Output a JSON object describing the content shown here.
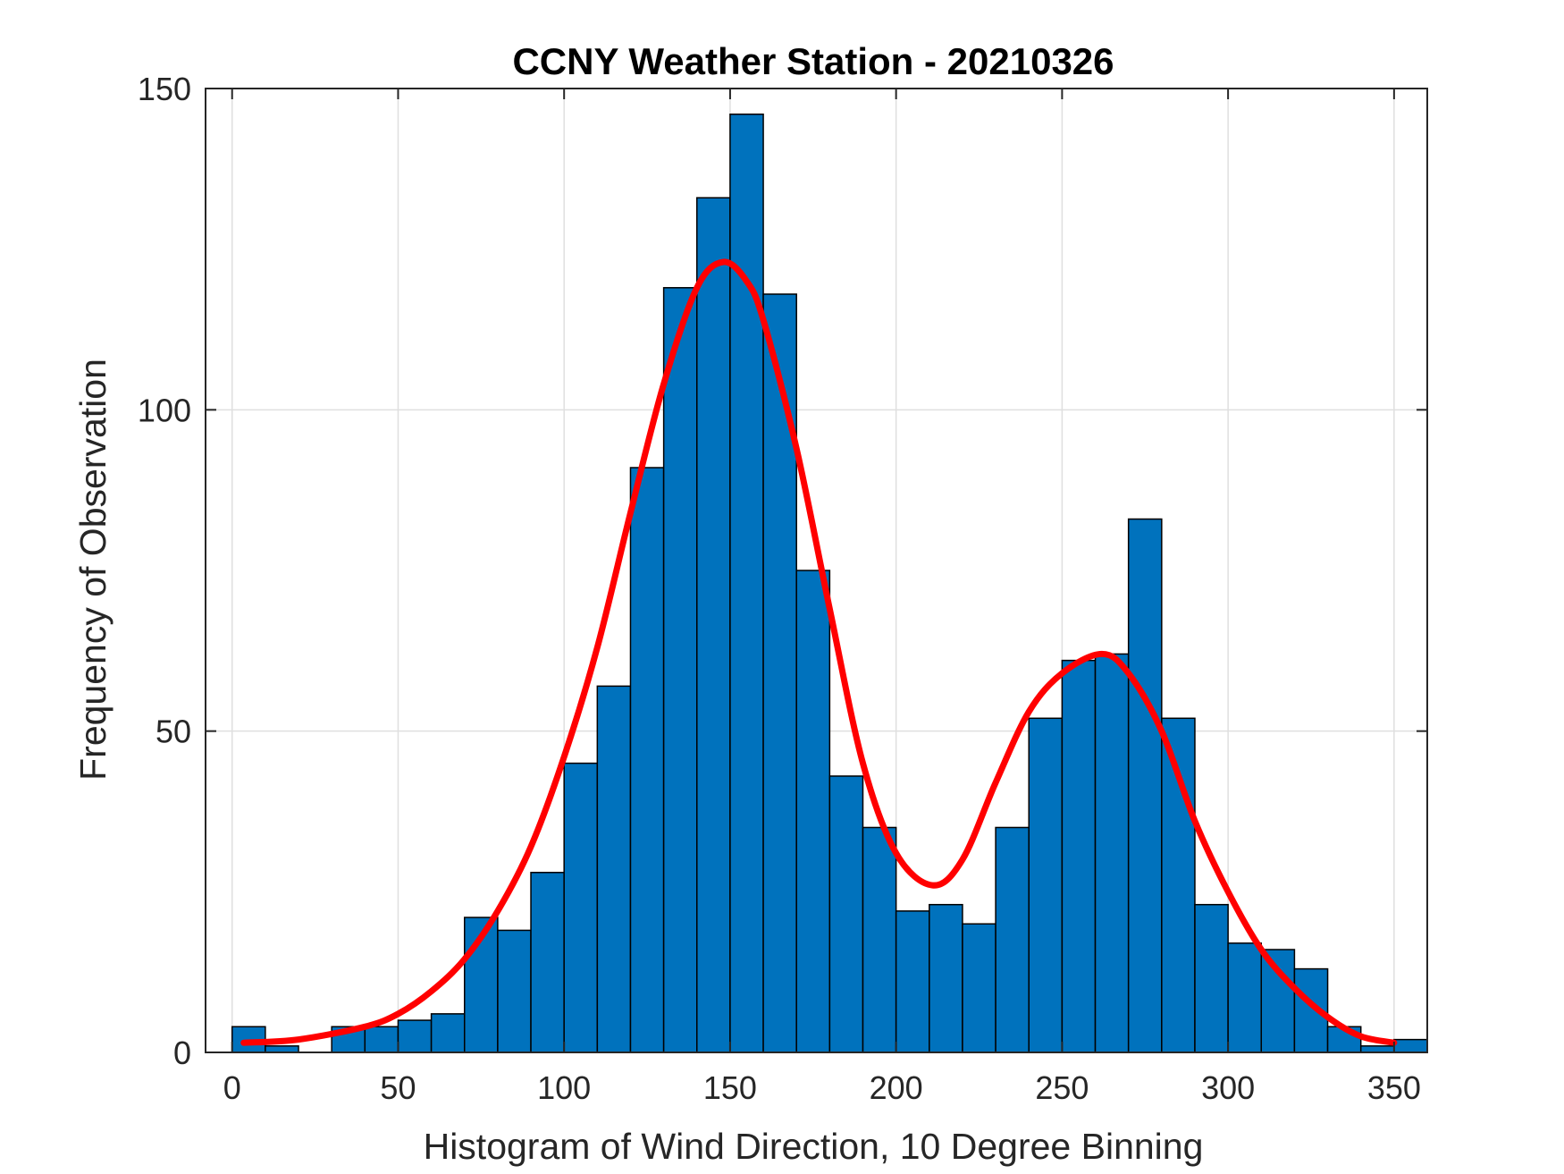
{
  "chart_data": {
    "type": "bar",
    "title": "CCNY Weather Station - 20210326",
    "xlabel": "Histogram of Wind Direction, 10 Degree Binning",
    "ylabel": "Frequency of Observation",
    "xlim": [
      -8,
      360
    ],
    "ylim": [
      0,
      150
    ],
    "xticks": [
      0,
      50,
      100,
      150,
      200,
      250,
      300,
      350
    ],
    "yticks": [
      0,
      50,
      100,
      150
    ],
    "grid": true,
    "bin_width": 10,
    "bin_edges": [
      0,
      10,
      20,
      30,
      40,
      50,
      60,
      70,
      80,
      90,
      100,
      110,
      120,
      130,
      140,
      150,
      160,
      170,
      180,
      190,
      200,
      210,
      220,
      230,
      240,
      250,
      260,
      270,
      280,
      290,
      300,
      310,
      320,
      330,
      340,
      350,
      360
    ],
    "values": [
      4,
      1,
      0,
      4,
      4,
      5,
      6,
      21,
      19,
      28,
      45,
      57,
      91,
      119,
      133,
      146,
      118,
      75,
      43,
      35,
      22,
      23,
      20,
      35,
      52,
      61,
      62,
      83,
      52,
      23,
      17,
      16,
      13,
      4,
      1,
      2
    ],
    "series": [
      {
        "type": "line",
        "x": [
          3.5,
          20,
          40,
          50,
          60,
          70,
          80,
          90,
          100,
          110,
          120,
          130,
          140,
          148,
          155,
          160,
          170,
          180,
          190,
          200,
          211,
          220,
          230,
          240,
          250,
          262,
          270,
          280,
          290,
          300,
          310,
          320,
          330,
          340,
          350
        ],
        "values": [
          1.5,
          2,
          4,
          6,
          9.5,
          14.5,
          22,
          32,
          46,
          63,
          84,
          104,
          119,
          123,
          120,
          114,
          94,
          69,
          45,
          31,
          26,
          30,
          42,
          53,
          59,
          62,
          59,
          50,
          36,
          25,
          16,
          10,
          5.5,
          2.5,
          1.5
        ]
      }
    ],
    "colors": {
      "bars": "#0072BD",
      "bar_edge": "#000000",
      "fit_line": "#FF0000",
      "grid": "#DFDFDF",
      "axis": "#262626"
    }
  }
}
